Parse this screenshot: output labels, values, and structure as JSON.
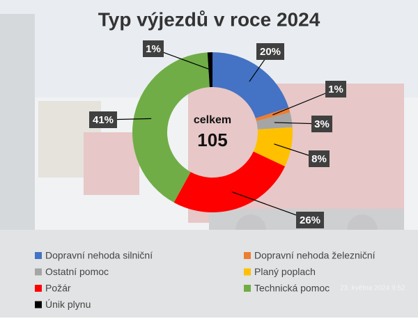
{
  "chart_data": {
    "type": "donut",
    "title": "Typ výjezdů v roce 2024",
    "center_label": "celkem",
    "center_value": "105",
    "categories": [
      "Dopravní nehoda silniční",
      "Dopravní nehoda železniční",
      "Ostatní pomoc",
      "Planý poplach",
      "Požár",
      "Technická pomoc",
      "Únik plynu"
    ],
    "values": [
      20,
      1,
      3,
      8,
      26,
      41,
      1
    ],
    "value_labels": [
      "20%",
      "1%",
      "3%",
      "8%",
      "26%",
      "41%",
      "1%"
    ],
    "colors": [
      "#4472c4",
      "#ed7d31",
      "#a5a5a5",
      "#ffc000",
      "#ff0000",
      "#70ad47",
      "#000000"
    ],
    "timestamp": "23. května 2024 9:52"
  }
}
